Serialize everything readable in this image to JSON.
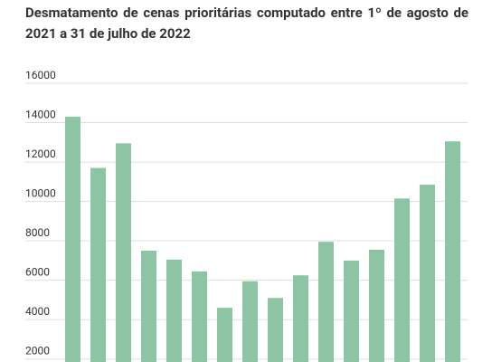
{
  "chart_data": {
    "type": "bar",
    "title": "Desmatamento de cenas prioritárias computado entre 1º de agosto de 2021 a 31 de julho de 2022",
    "values": [
      14300,
      11700,
      12950,
      7500,
      7050,
      6450,
      4600,
      5950,
      5100,
      6250,
      7950,
      7000,
      7550,
      10150,
      10850,
      13050
    ],
    "color": "#8dc4a3",
    "ylim": [
      1850,
      16000
    ],
    "yticks": [
      2000,
      4000,
      6000,
      8000,
      10000,
      12000,
      14000,
      16000
    ],
    "grid": true
  }
}
